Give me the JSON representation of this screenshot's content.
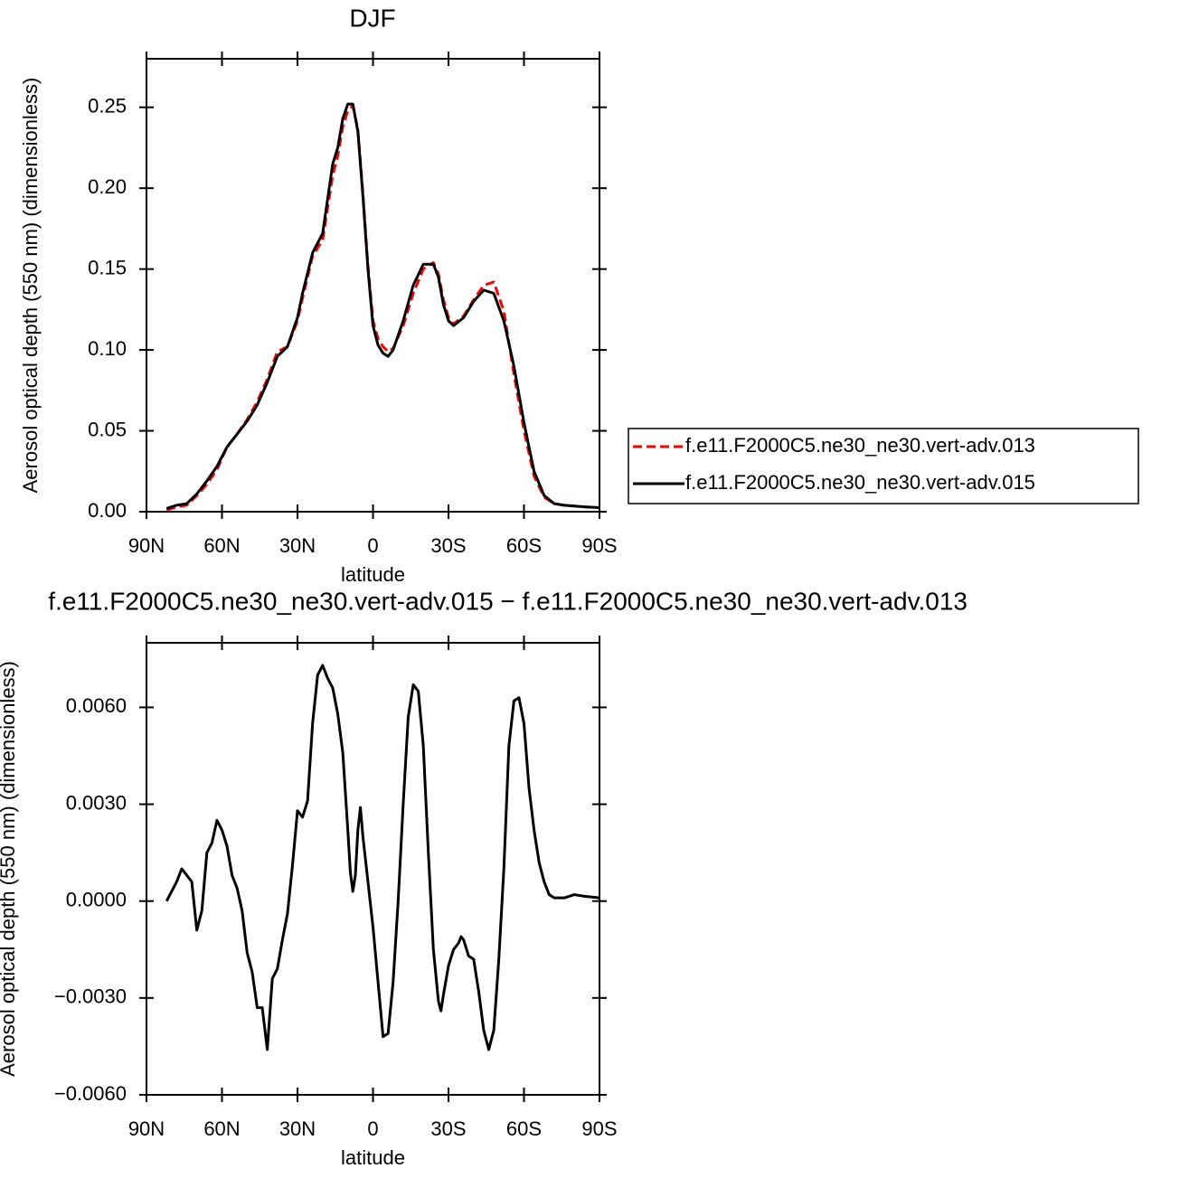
{
  "chart_data": [
    {
      "type": "line",
      "title": "DJF",
      "ylabel": "Aerosol optical depth (550 nm) (dimensionless)",
      "xlabel": "latitude",
      "xlim": [
        90,
        -90
      ],
      "xticks": [
        {
          "value": 90,
          "label": "90N"
        },
        {
          "value": 60,
          "label": "60N"
        },
        {
          "value": 30,
          "label": "30N"
        },
        0,
        {
          "value": -30,
          "label": "30S"
        },
        {
          "value": -60,
          "label": "60S"
        },
        {
          "value": -90,
          "label": "90S"
        }
      ],
      "ylim": [
        0,
        0.28
      ],
      "yticks": [
        {
          "value": 0,
          "label": "0.00"
        },
        0.05,
        {
          "value": 0.1,
          "label": "0.10"
        },
        0.15,
        {
          "value": 0.2,
          "label": "0.20"
        },
        0.25
      ],
      "legend": "right",
      "x": [
        82,
        78,
        74,
        70,
        66,
        62,
        58,
        54,
        50,
        46,
        42,
        38,
        34,
        30,
        28,
        24,
        20,
        16,
        14,
        12,
        10,
        8,
        6,
        4,
        2,
        0,
        -2,
        -4,
        -6,
        -8,
        -12,
        -16,
        -20,
        -24,
        -26,
        -28,
        -30,
        -32,
        -36,
        -40,
        -44,
        -48,
        -52,
        -56,
        -60,
        -64,
        -68,
        -72,
        -76,
        -80,
        -84,
        -90
      ],
      "series": [
        {
          "name": "f.e11.F2000C5.ne30_ne30.vert-adv.013",
          "color": "#ff0000",
          "line_style": "dashed",
          "values": [
            0.001,
            0.003,
            0.004,
            0.01,
            0.017,
            0.026,
            0.04,
            0.048,
            0.057,
            0.068,
            0.082,
            0.099,
            0.102,
            0.118,
            0.132,
            0.158,
            0.168,
            0.208,
            0.22,
            0.238,
            0.248,
            0.251,
            0.236,
            0.197,
            0.152,
            0.118,
            0.107,
            0.102,
            0.099,
            0.101,
            0.115,
            0.135,
            0.15,
            0.154,
            0.147,
            0.131,
            0.12,
            0.116,
            0.121,
            0.131,
            0.14,
            0.142,
            0.124,
            0.085,
            0.05,
            0.022,
            0.009,
            0.005,
            0.004,
            0.0035,
            0.003,
            0.0025
          ]
        },
        {
          "name": "f.e11.F2000C5.ne30_ne30.vert-adv.015",
          "color": "#000000",
          "line_style": "solid",
          "values": [
            0.002,
            0.004,
            0.005,
            0.011,
            0.019,
            0.028,
            0.04,
            0.048,
            0.056,
            0.066,
            0.08,
            0.096,
            0.102,
            0.12,
            0.135,
            0.16,
            0.172,
            0.215,
            0.225,
            0.243,
            0.252,
            0.252,
            0.235,
            0.195,
            0.15,
            0.115,
            0.103,
            0.098,
            0.096,
            0.1,
            0.118,
            0.14,
            0.153,
            0.153,
            0.145,
            0.128,
            0.118,
            0.115,
            0.12,
            0.13,
            0.137,
            0.135,
            0.118,
            0.09,
            0.055,
            0.025,
            0.01,
            0.005,
            0.004,
            0.0035,
            0.003,
            0.0025
          ]
        }
      ]
    },
    {
      "type": "line",
      "title": "f.e11.F2000C5.ne30_ne30.vert-adv.015 − f.e11.F2000C5.ne30_ne30.vert-adv.013",
      "ylabel": "Aerosol optical depth (550 nm) (dimensionless)",
      "xlabel": "latitude",
      "xlim": [
        90,
        -90
      ],
      "xticks": [
        {
          "value": 90,
          "label": "90N"
        },
        {
          "value": 60,
          "label": "60N"
        },
        {
          "value": 30,
          "label": "30N"
        },
        0,
        {
          "value": -30,
          "label": "30S"
        },
        {
          "value": -60,
          "label": "60S"
        },
        {
          "value": -90,
          "label": "90S"
        }
      ],
      "ylim": [
        -0.006,
        0.008
      ],
      "yticks": [
        {
          "value": -0.006,
          "label": "−0.0060"
        },
        {
          "value": -0.003,
          "label": "−0.0030"
        },
        {
          "value": 0,
          "label": "0.0000"
        },
        {
          "value": 0.003,
          "label": "0.0030"
        },
        {
          "value": 0.006,
          "label": "0.0060"
        }
      ],
      "x": [
        82,
        78,
        76,
        72,
        70,
        68,
        66,
        64,
        62,
        60,
        58,
        56,
        54,
        52,
        50,
        48,
        46,
        44,
        42,
        40,
        38,
        36,
        34,
        32,
        30,
        28,
        26,
        24,
        22,
        20,
        18,
        16,
        14,
        12,
        10,
        9,
        8,
        7,
        6,
        5,
        4,
        0,
        -2,
        -4,
        -6,
        -8,
        -10,
        -12,
        -14,
        -16,
        -18,
        -20,
        -22,
        -24,
        -26,
        -27,
        -28,
        -30,
        -32,
        -34,
        -35,
        -36,
        -38,
        -40,
        -42,
        -44,
        -46,
        -48,
        -50,
        -52,
        -54,
        -56,
        -58,
        -60,
        -62,
        -64,
        -66,
        -68,
        -70,
        -72,
        -76,
        -80,
        -84,
        -90
      ],
      "series": [
        {
          "color": "#000000",
          "line_style": "solid",
          "values": [
            0,
            0.0006,
            0.001,
            0.0006,
            -0.0009,
            -0.0003,
            0.0015,
            0.0018,
            0.0025,
            0.0022,
            0.0017,
            0.0008,
            0.0004,
            -0.0003,
            -0.0016,
            -0.0022,
            -0.0033,
            -0.0033,
            -0.0046,
            -0.0024,
            -0.0021,
            -0.0012,
            -0.0004,
            0.0011,
            0.0028,
            0.0026,
            0.0031,
            0.0055,
            0.007,
            0.0073,
            0.0069,
            0.0066,
            0.0058,
            0.0046,
            0.0022,
            0.0009,
            0.0003,
            0.0008,
            0.0022,
            0.0029,
            0.002,
            -0.0008,
            -0.0025,
            -0.0042,
            -0.0041,
            -0.0025,
            0,
            0.003,
            0.0057,
            0.0067,
            0.0065,
            0.0048,
            0.0015,
            -0.0015,
            -0.0031,
            -0.0034,
            -0.0029,
            -0.002,
            -0.0015,
            -0.0013,
            -0.0011,
            -0.0012,
            -0.0017,
            -0.0018,
            -0.0028,
            -0.004,
            -0.0046,
            -0.004,
            -0.0018,
            0.001,
            0.0048,
            0.0062,
            0.0063,
            0.0055,
            0.0035,
            0.0022,
            0.0012,
            0.0006,
            0.0002,
            0.0001,
            0.0001,
            0.0002,
            0.00015,
            0.0001
          ]
        }
      ]
    }
  ]
}
